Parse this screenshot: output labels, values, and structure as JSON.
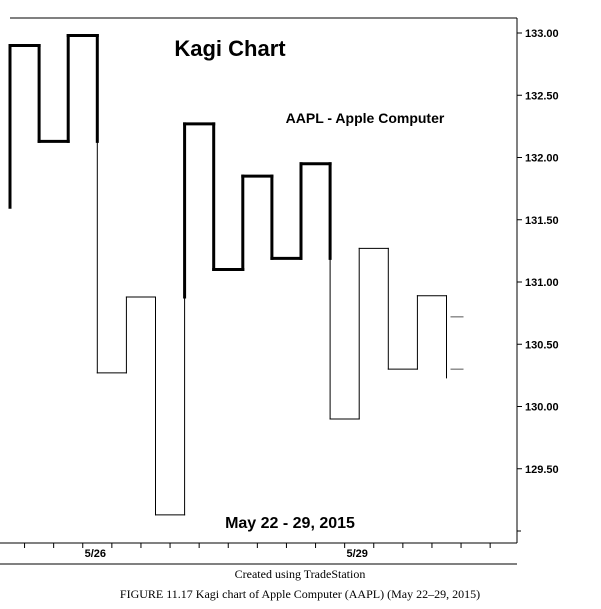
{
  "chart_data": {
    "type": "kagi",
    "title": "Kagi Chart",
    "symbol_label": "AAPL - Apple Computer",
    "date_range": "May 22 - 29, 2015",
    "ylim": [
      129.0,
      133.1
    ],
    "y_ticks": [
      "133.00",
      "132.50",
      "132.00",
      "131.50",
      "131.00",
      "130.50",
      "130.00",
      "129.50"
    ],
    "x_labels": [
      {
        "label": "5/26",
        "column": 3
      },
      {
        "label": "5/29",
        "column": 12
      }
    ],
    "vertices": [
      131.6,
      132.9,
      132.13,
      132.98,
      130.27,
      130.88,
      129.13,
      132.27,
      131.1,
      131.85,
      131.19,
      131.95,
      129.9,
      131.27,
      130.3,
      130.89,
      130.23
    ],
    "marker_levels": [
      130.72,
      130.3
    ],
    "grid": false,
    "legend": "none"
  },
  "captions": {
    "credit": "Created using TradeStation",
    "figure": "FIGURE 11.17 Kagi chart of Apple Computer (AAPL) (May 22–29, 2015)"
  }
}
